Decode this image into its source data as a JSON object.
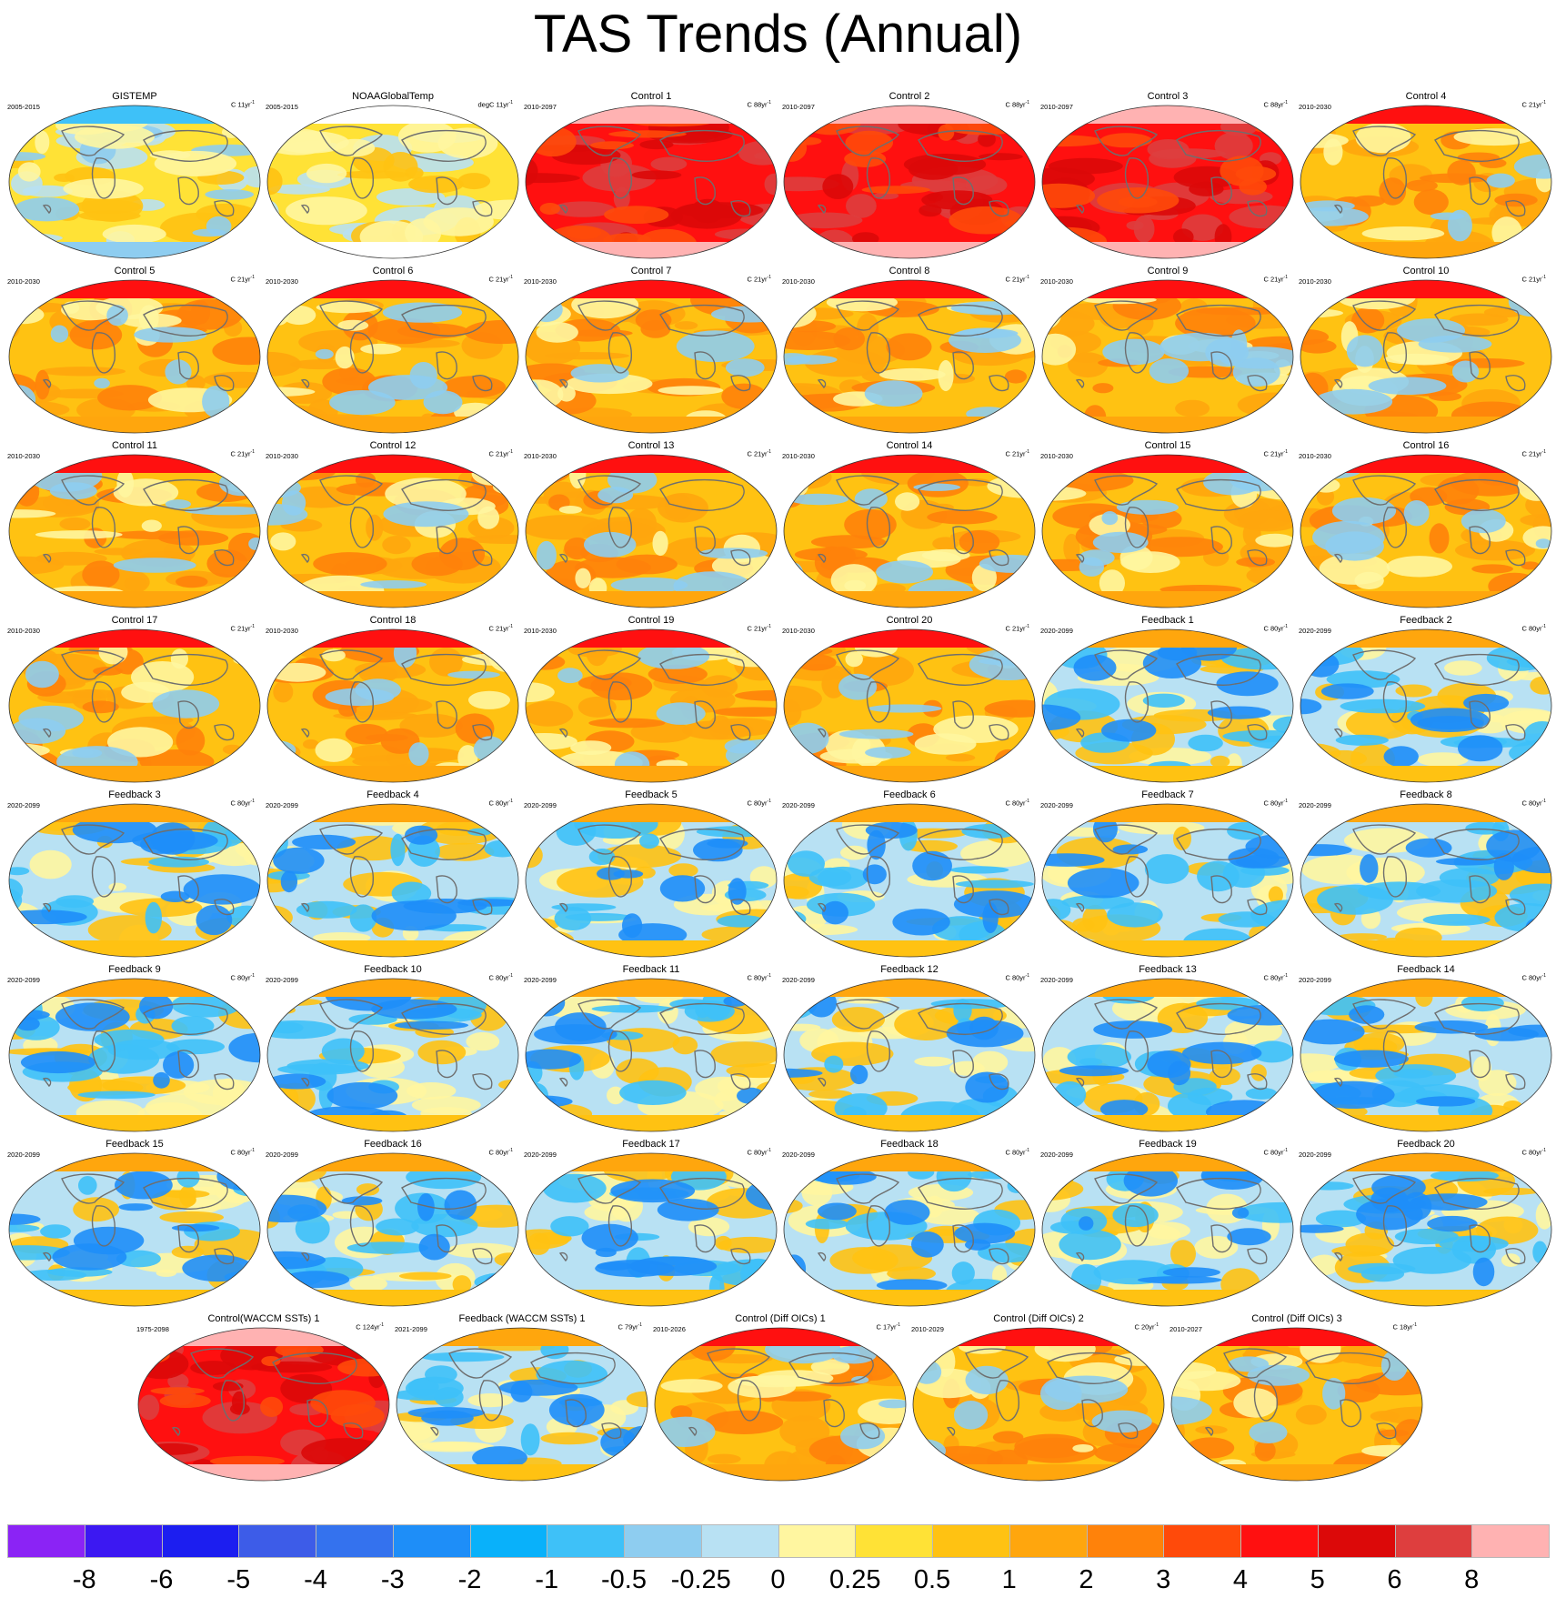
{
  "title": "TAS Trends (Annual)",
  "chart_data": {
    "type": "heatmap",
    "projection": "Robinson (global maps)",
    "variable": "TAS trend",
    "colorbar": {
      "labels": [
        "-8",
        "-6",
        "-5",
        "-4",
        "-3",
        "-2",
        "-1",
        "-0.5",
        "-0.25",
        "0",
        "0.25",
        "0.5",
        "1",
        "2",
        "3",
        "4",
        "5",
        "6",
        "8"
      ],
      "colors": [
        "#8b23f5",
        "#3c18f2",
        "#1c1ef0",
        "#3d5ce8",
        "#3472ee",
        "#1e8ef8",
        "#09b1fa",
        "#3ec1f8",
        "#8ecdf0",
        "#b8e1f3",
        "#fff6a0",
        "#ffe236",
        "#ffc212",
        "#ffa60d",
        "#ff820a",
        "#ff4a0a",
        "#ff1010",
        "#dc0909",
        "#de3e3e",
        "#ffb2b2"
      ]
    },
    "panels": [
      {
        "title": "GISTEMP",
        "period": "2005-2015",
        "units": "C 11yr",
        "sup": "-1",
        "scheme": "obs-gis"
      },
      {
        "title": "NOAAGlobalTemp",
        "period": "2005-2015",
        "units": "degC 11yr",
        "sup": "-1",
        "scheme": "obs-noaa"
      },
      {
        "title": "Control 1",
        "period": "2010-2097",
        "units": "C 88yr",
        "sup": "-1",
        "scheme": "hot"
      },
      {
        "title": "Control 2",
        "period": "2010-2097",
        "units": "C 88yr",
        "sup": "-1",
        "scheme": "hot"
      },
      {
        "title": "Control 3",
        "period": "2010-2097",
        "units": "C 88yr",
        "sup": "-1",
        "scheme": "hot"
      },
      {
        "title": "Control 4",
        "period": "2010-2030",
        "units": "C 21yr",
        "sup": "-1",
        "scheme": "warm"
      },
      {
        "title": "Control 5",
        "period": "2010-2030",
        "units": "C 21yr",
        "sup": "-1",
        "scheme": "warm"
      },
      {
        "title": "Control 6",
        "period": "2010-2030",
        "units": "C 21yr",
        "sup": "-1",
        "scheme": "warm"
      },
      {
        "title": "Control 7",
        "period": "2010-2030",
        "units": "C 21yr",
        "sup": "-1",
        "scheme": "warm"
      },
      {
        "title": "Control 8",
        "period": "2010-2030",
        "units": "C 21yr",
        "sup": "-1",
        "scheme": "warm"
      },
      {
        "title": "Control 9",
        "period": "2010-2030",
        "units": "C 21yr",
        "sup": "-1",
        "scheme": "warm"
      },
      {
        "title": "Control 10",
        "period": "2010-2030",
        "units": "C 21yr",
        "sup": "-1",
        "scheme": "warm"
      },
      {
        "title": "Control 11",
        "period": "2010-2030",
        "units": "C 21yr",
        "sup": "-1",
        "scheme": "warm"
      },
      {
        "title": "Control 12",
        "period": "2010-2030",
        "units": "C 21yr",
        "sup": "-1",
        "scheme": "warm"
      },
      {
        "title": "Control 13",
        "period": "2010-2030",
        "units": "C 21yr",
        "sup": "-1",
        "scheme": "warm"
      },
      {
        "title": "Control 14",
        "period": "2010-2030",
        "units": "C 21yr",
        "sup": "-1",
        "scheme": "warm"
      },
      {
        "title": "Control 15",
        "period": "2010-2030",
        "units": "C 21yr",
        "sup": "-1",
        "scheme": "warm"
      },
      {
        "title": "Control 16",
        "period": "2010-2030",
        "units": "C 21yr",
        "sup": "-1",
        "scheme": "warm"
      },
      {
        "title": "Control 17",
        "period": "2010-2030",
        "units": "C 21yr",
        "sup": "-1",
        "scheme": "warm"
      },
      {
        "title": "Control 18",
        "period": "2010-2030",
        "units": "C 21yr",
        "sup": "-1",
        "scheme": "warm"
      },
      {
        "title": "Control 19",
        "period": "2010-2030",
        "units": "C 21yr",
        "sup": "-1",
        "scheme": "warm"
      },
      {
        "title": "Control 20",
        "period": "2010-2030",
        "units": "C 21yr",
        "sup": "-1",
        "scheme": "warm"
      },
      {
        "title": "Feedback 1",
        "period": "2020-2099",
        "units": "C 80yr",
        "sup": "-1",
        "scheme": "cool"
      },
      {
        "title": "Feedback 2",
        "period": "2020-2099",
        "units": "C 80yr",
        "sup": "-1",
        "scheme": "cool"
      },
      {
        "title": "Feedback 3",
        "period": "2020-2099",
        "units": "C 80yr",
        "sup": "-1",
        "scheme": "cool"
      },
      {
        "title": "Feedback 4",
        "period": "2020-2099",
        "units": "C 80yr",
        "sup": "-1",
        "scheme": "cool"
      },
      {
        "title": "Feedback 5",
        "period": "2020-2099",
        "units": "C 80yr",
        "sup": "-1",
        "scheme": "cool"
      },
      {
        "title": "Feedback 6",
        "period": "2020-2099",
        "units": "C 80yr",
        "sup": "-1",
        "scheme": "cool"
      },
      {
        "title": "Feedback 7",
        "period": "2020-2099",
        "units": "C 80yr",
        "sup": "-1",
        "scheme": "cool"
      },
      {
        "title": "Feedback 8",
        "period": "2020-2099",
        "units": "C 80yr",
        "sup": "-1",
        "scheme": "cool"
      },
      {
        "title": "Feedback 9",
        "period": "2020-2099",
        "units": "C 80yr",
        "sup": "-1",
        "scheme": "cool"
      },
      {
        "title": "Feedback 10",
        "period": "2020-2099",
        "units": "C 80yr",
        "sup": "-1",
        "scheme": "cool"
      },
      {
        "title": "Feedback 11",
        "period": "2020-2099",
        "units": "C 80yr",
        "sup": "-1",
        "scheme": "cool"
      },
      {
        "title": "Feedback 12",
        "period": "2020-2099",
        "units": "C 80yr",
        "sup": "-1",
        "scheme": "cool"
      },
      {
        "title": "Feedback 13",
        "period": "2020-2099",
        "units": "C 80yr",
        "sup": "-1",
        "scheme": "cool"
      },
      {
        "title": "Feedback 14",
        "period": "2020-2099",
        "units": "C 80yr",
        "sup": "-1",
        "scheme": "cool"
      },
      {
        "title": "Feedback 15",
        "period": "2020-2099",
        "units": "C 80yr",
        "sup": "-1",
        "scheme": "cool"
      },
      {
        "title": "Feedback 16",
        "period": "2020-2099",
        "units": "C 80yr",
        "sup": "-1",
        "scheme": "cool"
      },
      {
        "title": "Feedback 17",
        "period": "2020-2099",
        "units": "C 80yr",
        "sup": "-1",
        "scheme": "cool"
      },
      {
        "title": "Feedback 18",
        "period": "2020-2099",
        "units": "C 80yr",
        "sup": "-1",
        "scheme": "cool"
      },
      {
        "title": "Feedback 19",
        "period": "2020-2099",
        "units": "C 80yr",
        "sup": "-1",
        "scheme": "cool"
      },
      {
        "title": "Feedback 20",
        "period": "2020-2099",
        "units": "C 80yr",
        "sup": "-1",
        "scheme": "cool"
      },
      {
        "title": "Control(WACCM SSTs) 1",
        "period": "1975-2098",
        "units": "C 124yr",
        "sup": "-1",
        "scheme": "hot"
      },
      {
        "title": "Feedback (WACCM SSTs) 1",
        "period": "2021-2099",
        "units": "C 79yr",
        "sup": "-1",
        "scheme": "cool"
      },
      {
        "title": "Control (Diff OICs) 1",
        "period": "2010-2026",
        "units": "C 17yr",
        "sup": "-1",
        "scheme": "warm"
      },
      {
        "title": "Control (Diff OICs) 2",
        "period": "2010-2029",
        "units": "C 20yr",
        "sup": "-1",
        "scheme": "warm"
      },
      {
        "title": "Control (Diff OICs) 3",
        "period": "2010-2027",
        "units": "C 18yr",
        "sup": "-1",
        "scheme": "warm"
      }
    ]
  }
}
